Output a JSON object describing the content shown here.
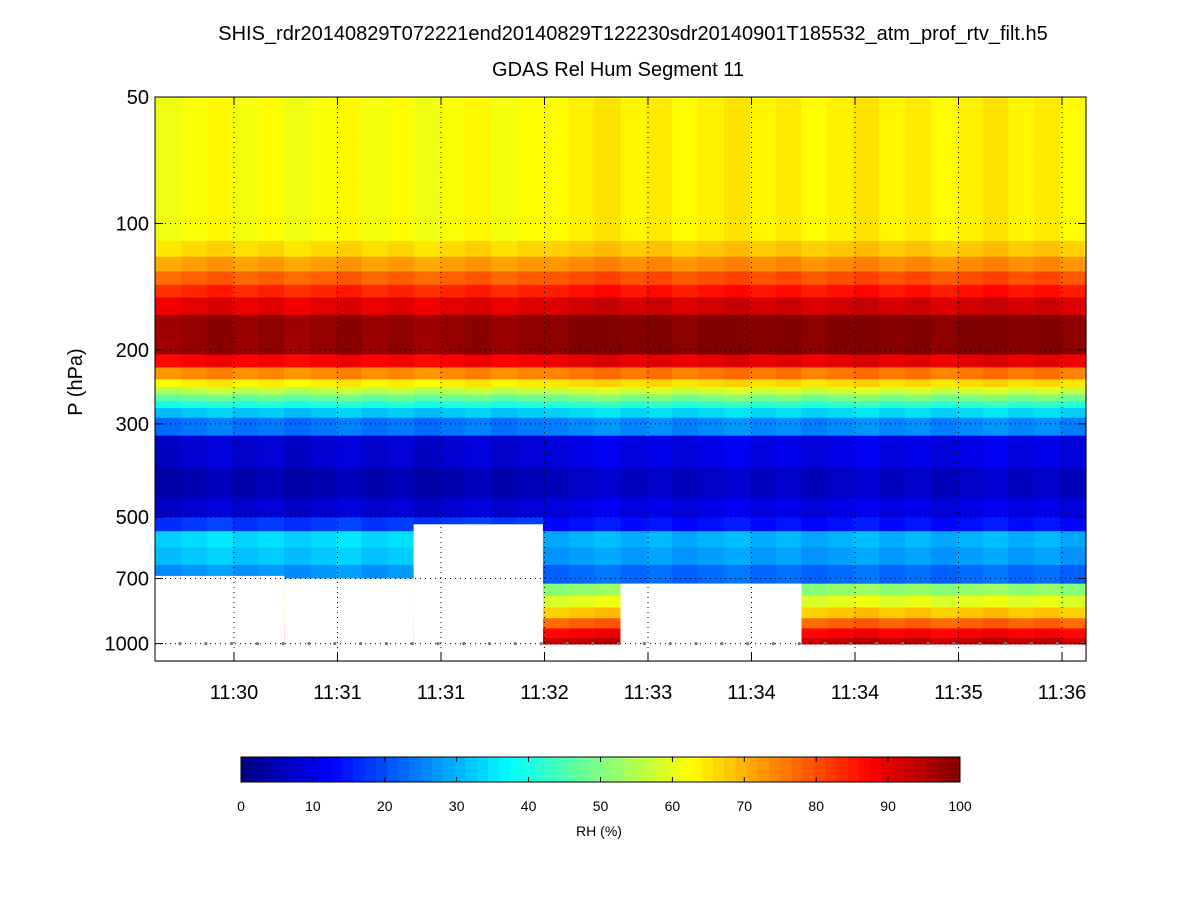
{
  "chart_data": {
    "type": "heatmap",
    "title": "SHIS_rdr20140829T072221end20140829T122230sdr20140901T185532_atm_prof_rtv_filt.h5",
    "subtitle": "GDAS Rel Hum Segment 11",
    "ylabel": "P (hPa)",
    "xlabel": "",
    "y_scale": "log",
    "y_reversed": true,
    "ylim": [
      50,
      1100
    ],
    "y_ticks": [
      50,
      100,
      200,
      300,
      500,
      700,
      1000
    ],
    "x_tick_labels": [
      "11:30",
      "11:31",
      "11:31",
      "11:32",
      "11:33",
      "11:34",
      "11:34",
      "11:35",
      "11:36"
    ],
    "x_range_columns": 36,
    "grid": true,
    "colorbar": {
      "label": "RH (%)",
      "range": [
        0,
        100
      ],
      "ticks": [
        0,
        10,
        20,
        30,
        40,
        50,
        60,
        70,
        80,
        90,
        100
      ],
      "colormap": "jet",
      "placement": "bottom"
    },
    "profile_pressure_hPa": [
      50,
      70,
      85,
      100,
      110,
      120,
      130,
      140,
      150,
      165,
      190,
      205,
      220,
      235,
      245,
      255,
      265,
      275,
      290,
      320,
      380,
      450,
      500,
      540,
      590,
      650,
      720,
      770,
      820,
      870,
      920,
      970
    ],
    "profile_rh_pct": [
      62,
      62,
      62,
      62,
      66,
      72,
      78,
      84,
      90,
      98,
      98,
      88,
      74,
      64,
      56,
      48,
      40,
      32,
      24,
      8,
      5,
      8,
      18,
      34,
      32,
      27,
      50,
      58,
      66,
      76,
      86,
      92
    ],
    "missing_data_regions": [
      {
        "columns": [
          0,
          4
        ],
        "p_top_hPa": 690,
        "p_bottom_hPa": 1100
      },
      {
        "columns": [
          5,
          9
        ],
        "p_top_hPa": 700,
        "p_bottom_hPa": 1100
      },
      {
        "columns": [
          10,
          14
        ],
        "p_top_hPa": 520,
        "p_bottom_hPa": 1100
      },
      {
        "columns": [
          18,
          24
        ],
        "p_top_hPa": 720,
        "p_bottom_hPa": 1100
      },
      {
        "columns": [
          0,
          14
        ],
        "p_top_hPa": 1005,
        "p_bottom_hPa": 1100
      },
      {
        "columns": [
          15,
          17
        ],
        "p_top_hPa": 1005,
        "p_bottom_hPa": 1100
      },
      {
        "columns": [
          25,
          35
        ],
        "p_top_hPa": 1005,
        "p_bottom_hPa": 1100
      }
    ]
  }
}
